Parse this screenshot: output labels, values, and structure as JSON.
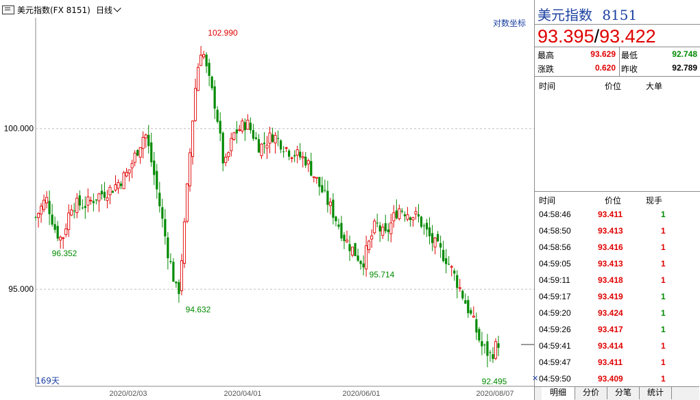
{
  "toolbar": {
    "instrument": "美元指数(FX 8151)",
    "period": "日线"
  },
  "chart_labels": {
    "log_scale": "对数坐标",
    "days": "169天"
  },
  "colors": {
    "up": "#e00000",
    "down": "#008a00",
    "grid": "#bfbfbf",
    "axis_text": "#1a3fa0"
  },
  "chart_data": {
    "type": "candlestick",
    "yticks": [
      "100.000",
      "95.000"
    ],
    "xticks": [
      "2020/02/03",
      "2020/04/01",
      "2020/06/01",
      "2020/08/07"
    ],
    "annotations": [
      {
        "text": "102.990",
        "kind": "high"
      },
      {
        "text": "96.352",
        "kind": "low"
      },
      {
        "text": "94.632",
        "kind": "low"
      },
      {
        "text": "95.714",
        "kind": "low"
      },
      {
        "text": "92.495",
        "kind": "low"
      }
    ],
    "log_scale": true,
    "bars": 169
  },
  "quote": {
    "name": "美元指数",
    "code": "8151",
    "bid": "93.395",
    "separator": "/",
    "ask": "93.422",
    "stats": [
      {
        "label": "最高",
        "value": "93.629",
        "color": "red"
      },
      {
        "label": "最低",
        "value": "92.748",
        "color": "green"
      },
      {
        "label": "涨跌",
        "value": "0.620",
        "color": "red"
      },
      {
        "label": "昨收",
        "value": "92.789",
        "color": "black"
      }
    ]
  },
  "big_orders": {
    "headers": [
      "时间",
      "价位",
      "大单"
    ]
  },
  "ticks": {
    "headers": [
      "时间",
      "价位",
      "现手"
    ],
    "rows": [
      {
        "time": "04:58:46",
        "price": "93.411",
        "qty": "1",
        "qty_color": "green"
      },
      {
        "time": "04:58:50",
        "price": "93.413",
        "qty": "1",
        "qty_color": "red"
      },
      {
        "time": "04:58:56",
        "price": "93.416",
        "qty": "1",
        "qty_color": "red"
      },
      {
        "time": "04:59:05",
        "price": "93.413",
        "qty": "1",
        "qty_color": "red"
      },
      {
        "time": "04:59:11",
        "price": "93.418",
        "qty": "1",
        "qty_color": "red"
      },
      {
        "time": "04:59:17",
        "price": "93.419",
        "qty": "1",
        "qty_color": "green"
      },
      {
        "time": "04:59:20",
        "price": "93.424",
        "qty": "1",
        "qty_color": "green"
      },
      {
        "time": "04:59:26",
        "price": "93.417",
        "qty": "1",
        "qty_color": "green"
      },
      {
        "time": "04:59:41",
        "price": "93.414",
        "qty": "1",
        "qty_color": "red"
      },
      {
        "time": "04:59:47",
        "price": "93.411",
        "qty": "1",
        "qty_color": "red"
      },
      {
        "time": "04:59:50",
        "price": "93.409",
        "qty": "1",
        "qty_color": "red"
      }
    ]
  },
  "tabs": [
    "明细",
    "分价",
    "分笔",
    "统计"
  ]
}
